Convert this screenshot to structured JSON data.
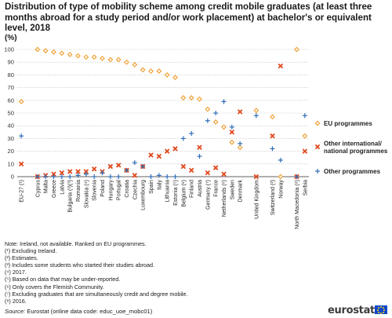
{
  "title": "Distribution of type of mobility scheme among credit mobile graduates (at least three months abroad for a study period and/or work placement) at bachelor's or equivalent level, 2018",
  "unit": "(%)",
  "notes": [
    "Note: Ireland,  not available. Ranked on EU programmes.",
    "(¹) Excluding Ireland.",
    "(²) Estimates.",
    "(³) Includes  some students who started their studies abroad.",
    "(⁴) 2017.",
    "(⁵) Based on data that may be under-reported.",
    "(⁶) Only  covers the Flemish Community.",
    "(⁷) Excluding graduates that are simultaneously  credit and degree mobile.",
    "(⁸) 2016."
  ],
  "source_label": "Source:",
  "source_text": " Eurostat (online data code: ",
  "source_code": "educ_uoe_mobc01",
  "source_end": ")",
  "logo_text": "eurostat",
  "colors": {
    "eu": "#f0a33a",
    "other_national": "#e0481d",
    "other": "#2f6db5",
    "grid": "#bdbdbd",
    "axis": "#333333",
    "flag": "#0e47cb",
    "flag_stars": "#ffd617"
  },
  "chart_data": {
    "type": "scatter",
    "title": "Distribution of type of mobility scheme among credit mobile graduates (at least three months abroad for a study period and/or work placement) at bachelor's or equivalent level, 2018",
    "ylabel": "(%)",
    "ylim": [
      0,
      100
    ],
    "yticks": [
      0,
      10,
      20,
      30,
      40,
      50,
      60,
      70,
      80,
      90,
      100
    ],
    "grid": true,
    "legend_position": "right",
    "categories": [
      "EU-27 (¹)",
      "Cyprus",
      "Malta",
      "Greece",
      "Latvia",
      "Bulgaria (²)(³)",
      "Romania",
      "Slovakia (⁴)",
      "Slovenia",
      "Poland",
      "Hungary",
      "Portugal",
      "Croatia",
      "Czechia",
      "Luxembourg",
      "Spain",
      "Italy",
      "Lithuania",
      "Estonia (⁵)",
      "Belgium (⁶)",
      "Finland",
      "Austria",
      "Germany (⁷)",
      "France",
      "Netherlands (⁸)",
      "Sweden",
      "Denmark",
      "United Kingdom",
      "Switzerland (²)",
      "Norway",
      "North Macedonia (⁸)",
      "Serbia"
    ],
    "gap_after": [
      "EU-27 (¹)",
      "Denmark",
      "United Kingdom",
      "Norway"
    ],
    "series": [
      {
        "name": "EU programmes",
        "marker": "diamond",
        "values": [
          59,
          100,
          99,
          98,
          97,
          96,
          95,
          94,
          94,
          93,
          92,
          92,
          90,
          88,
          84,
          83,
          83,
          80,
          78,
          62,
          62,
          61,
          53,
          43,
          39,
          27,
          23,
          52,
          47,
          0,
          100,
          32
        ]
      },
      {
        "name": "Other international/ national programmes",
        "marker": "x",
        "values": [
          10,
          0,
          1,
          2,
          3,
          4,
          4,
          4,
          6,
          4,
          8,
          9,
          5,
          1,
          8,
          17,
          16,
          20,
          22,
          8,
          5,
          23,
          3,
          7,
          2,
          35,
          51,
          0,
          32,
          87,
          0,
          20
        ]
      },
      {
        "name": "Other programmes",
        "marker": "plus",
        "values": [
          32,
          0,
          0,
          0,
          0,
          0,
          1,
          2,
          0,
          3,
          0,
          0,
          5,
          11,
          8,
          0,
          1,
          0,
          0,
          30,
          34,
          16,
          44,
          50,
          59,
          39,
          26,
          48,
          22,
          13,
          0,
          48
        ]
      }
    ]
  }
}
